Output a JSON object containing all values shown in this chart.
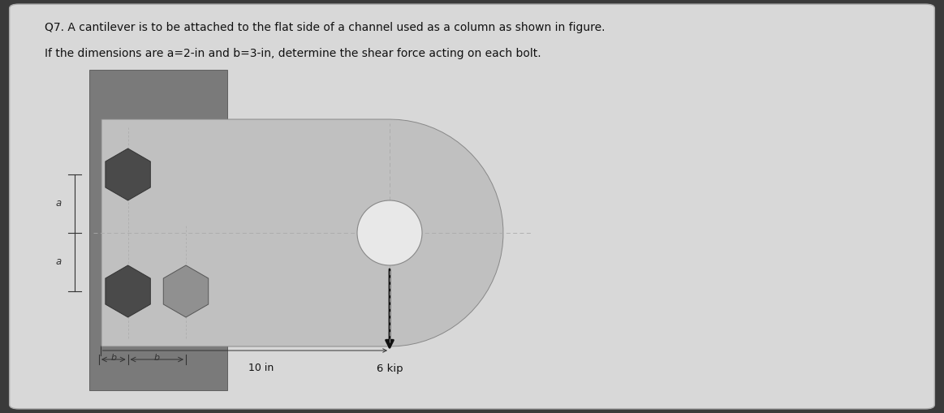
{
  "bg_outer": "#3a3a3a",
  "bg_card": "#d8d8d8",
  "bg_right": "#c8c8c8",
  "channel_color": "#7a7a7a",
  "beam_color": "#c0c0c0",
  "bolt_dark": "#4a4a4a",
  "bolt_light": "#909090",
  "hole_fill": "#e8e8e8",
  "dashed_color": "#aaaaaa",
  "dim_color": "#333333",
  "arrow_color": "#111111",
  "text_color": "#111111",
  "title_line1": "Q7. A cantilever is to be attached to the flat side of a channel used as a column as shown in figure.",
  "title_line2": "If the dimensions are a=2-in and b=3-in, determine the shear force acting on each bolt.",
  "label_10in": "10 in",
  "label_6kip": "6 kip",
  "label_a": "a",
  "label_b": "b"
}
